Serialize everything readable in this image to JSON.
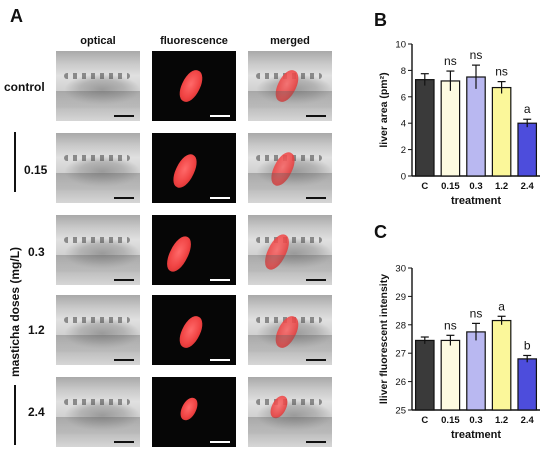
{
  "panels": {
    "A": "A",
    "B": "B",
    "C": "C"
  },
  "columns": [
    "optical",
    "fluorescence",
    "merged"
  ],
  "row_labels": [
    "control",
    "0.15",
    "0.3",
    "1.2",
    "2.4"
  ],
  "doses_label": "masticha doses (mg/L)",
  "chart_data": [
    {
      "type": "bar",
      "panel": "B",
      "categories": [
        "C",
        "0.15",
        "0.3",
        "1.2",
        "2.4"
      ],
      "values": [
        7.3,
        7.2,
        7.5,
        6.7,
        4.0
      ],
      "errors": [
        0.45,
        0.75,
        0.9,
        0.45,
        0.3
      ],
      "annotations": [
        "",
        "ns",
        "ns",
        "ns",
        "a"
      ],
      "xlabel": "treatment",
      "ylabel": "liver area (pm²)",
      "ylim": [
        0,
        10
      ],
      "yticks": [
        0,
        2,
        4,
        6,
        8,
        10
      ],
      "colors": [
        "#3a3a3a",
        "#fdfbe1",
        "#b9b8f1",
        "#fbf79a",
        "#4d4ddc"
      ]
    },
    {
      "type": "bar",
      "panel": "C",
      "categories": [
        "C",
        "0.15",
        "0.3",
        "1.2",
        "2.4"
      ],
      "values": [
        27.45,
        27.45,
        27.75,
        28.15,
        26.8
      ],
      "errors": [
        0.12,
        0.18,
        0.3,
        0.15,
        0.12
      ],
      "annotations": [
        "",
        "ns",
        "ns",
        "a",
        "b"
      ],
      "xlabel": "treatment",
      "ylabel": "lliver fluorescent intensity",
      "ylim": [
        25,
        30
      ],
      "yticks": [
        25,
        26,
        27,
        28,
        29,
        30
      ],
      "colors": [
        "#3a3a3a",
        "#fdfbe1",
        "#b9b8f1",
        "#fbf79a",
        "#4d4ddc"
      ]
    }
  ]
}
